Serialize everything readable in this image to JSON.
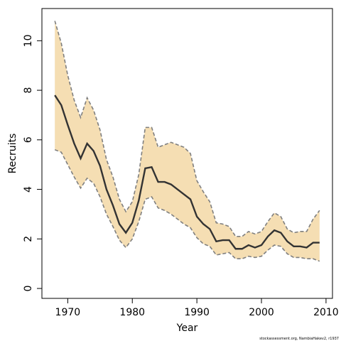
{
  "chart_data": {
    "type": "area",
    "xlabel": "Year",
    "ylabel": "Recruits",
    "xlim": [
      1966,
      2011
    ],
    "ylim": [
      -0.4,
      11.3
    ],
    "x_ticks": [
      1970,
      1980,
      1990,
      2000,
      2010
    ],
    "y_ticks": [
      0,
      2,
      4,
      6,
      8,
      10
    ],
    "colors": {
      "band": "#f5deb3",
      "line": "#333333",
      "bound": "#7f7f7f"
    },
    "x": [
      1968,
      1969,
      1970,
      1971,
      1972,
      1973,
      1974,
      1975,
      1976,
      1977,
      1978,
      1979,
      1980,
      1981,
      1982,
      1983,
      1984,
      1985,
      1986,
      1987,
      1988,
      1989,
      1990,
      1991,
      1992,
      1993,
      1994,
      1995,
      1996,
      1997,
      1998,
      1999,
      2000,
      2001,
      2002,
      2003,
      2004,
      2005,
      2006,
      2007,
      2008,
      2009
    ],
    "series": [
      {
        "values": [
          7.8,
          7.4,
          6.6,
          5.85,
          5.25,
          5.85,
          5.55,
          4.95,
          4.0,
          3.35,
          2.6,
          2.25,
          2.65,
          3.55,
          4.85,
          4.9,
          4.3,
          4.3,
          4.2,
          4.0,
          3.8,
          3.6,
          2.9,
          2.6,
          2.4,
          1.9,
          1.95,
          1.95,
          1.6,
          1.6,
          1.75,
          1.65,
          1.75,
          2.1,
          2.35,
          2.25,
          1.9,
          1.7,
          1.7,
          1.65,
          1.85,
          1.85
        ]
      },
      {
        "values": [
          10.8,
          9.9,
          8.6,
          7.6,
          6.9,
          7.7,
          7.2,
          6.4,
          5.2,
          4.5,
          3.6,
          3.1,
          3.5,
          4.6,
          6.5,
          6.5,
          5.7,
          5.8,
          5.9,
          5.8,
          5.7,
          5.45,
          4.35,
          3.9,
          3.5,
          2.65,
          2.6,
          2.5,
          2.1,
          2.1,
          2.3,
          2.2,
          2.3,
          2.7,
          3.05,
          2.9,
          2.4,
          2.25,
          2.3,
          2.3,
          2.8,
          3.15
        ]
      },
      {
        "values": [
          5.6,
          5.5,
          5.0,
          4.5,
          4.05,
          4.45,
          4.25,
          3.7,
          3.0,
          2.5,
          1.95,
          1.65,
          2.0,
          2.7,
          3.6,
          3.7,
          3.25,
          3.15,
          3.0,
          2.8,
          2.6,
          2.45,
          2.05,
          1.8,
          1.7,
          1.35,
          1.4,
          1.45,
          1.2,
          1.2,
          1.3,
          1.25,
          1.3,
          1.55,
          1.75,
          1.7,
          1.4,
          1.25,
          1.25,
          1.2,
          1.2,
          1.1
        ]
      }
    ]
  },
  "footer": {
    "note": "stockassessment.org, NambiaHakev2, r1937"
  }
}
